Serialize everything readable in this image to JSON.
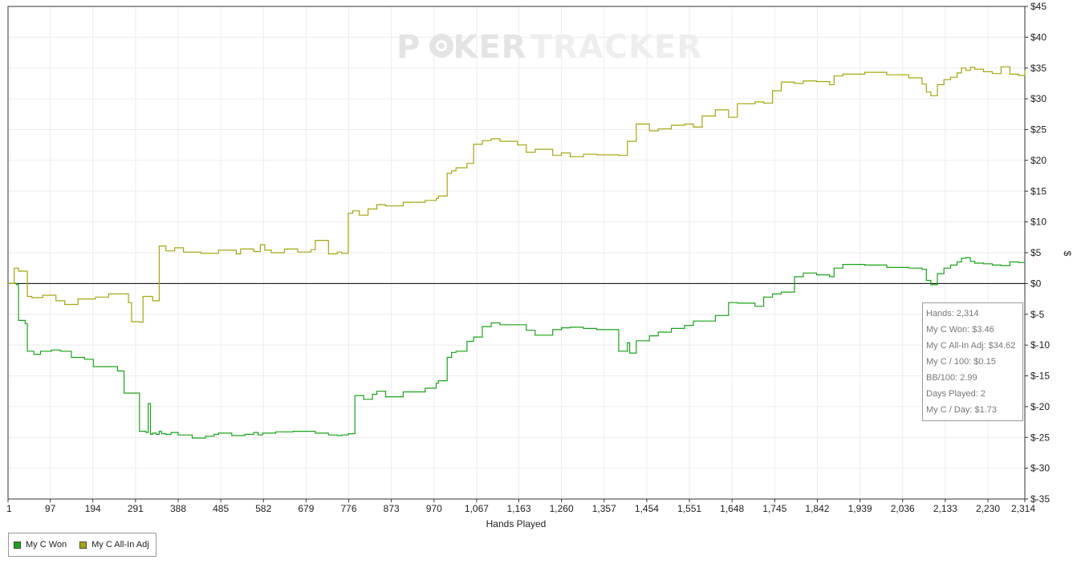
{
  "watermark": {
    "part1": "P",
    "part2": "KER",
    "part3": "TRACKER"
  },
  "chart_data": {
    "type": "line",
    "xlabel": "Hands Played",
    "ylabel": "$",
    "xlim": [
      1,
      2314
    ],
    "ylim": [
      -35,
      45
    ],
    "x_ticks": [
      1,
      97,
      194,
      291,
      388,
      485,
      582,
      679,
      776,
      873,
      970,
      1067,
      1163,
      1260,
      1357,
      1454,
      1551,
      1648,
      1745,
      1842,
      1939,
      2036,
      2133,
      2230,
      2314
    ],
    "x_tick_labels": [
      "1",
      "97",
      "194",
      "291",
      "388",
      "485",
      "582",
      "679",
      "776",
      "873",
      "970",
      "1,067",
      "1,163",
      "1,260",
      "1,357",
      "1,454",
      "1,551",
      "1,648",
      "1,745",
      "1,842",
      "1,939",
      "2,036",
      "2,133",
      "2,230",
      "2,314"
    ],
    "y_ticks": [
      45,
      40,
      35,
      30,
      25,
      20,
      15,
      10,
      5,
      0,
      -5,
      -10,
      -15,
      -20,
      -25,
      -30,
      -35
    ],
    "y_tick_labels": [
      "$45",
      "$40",
      "$35",
      "$30",
      "$25",
      "$20",
      "$15",
      "$10",
      "$5",
      "$0",
      "$-5",
      "$-10",
      "$-15",
      "$-20",
      "$-25",
      "$-30",
      "$-35"
    ],
    "grid": true,
    "legend_position": "bottom-left",
    "series": [
      {
        "name": "My C Won",
        "color": "#1aa31a",
        "x": [
          1,
          20,
          25,
          40,
          45,
          60,
          75,
          100,
          120,
          145,
          175,
          195,
          250,
          265,
          300,
          315,
          320,
          325,
          330,
          338,
          345,
          350,
          360,
          372,
          388,
          420,
          450,
          470,
          480,
          510,
          540,
          560,
          570,
          580,
          610,
          650,
          700,
          730,
          750,
          760,
          775,
          790,
          810,
          830,
          840,
          860,
          900,
          950,
          975,
          980,
          1000,
          1010,
          1020,
          1045,
          1060,
          1080,
          1100,
          1120,
          1160,
          1180,
          1200,
          1240,
          1260,
          1280,
          1310,
          1340,
          1390,
          1410,
          1415,
          1430,
          1460,
          1480,
          1510,
          1540,
          1560,
          1580,
          1610,
          1640,
          1660,
          1700,
          1720,
          1740,
          1760,
          1790,
          1810,
          1840,
          1870,
          1880,
          1900,
          1950,
          2000,
          2050,
          2080,
          2090,
          2100,
          2115,
          2130,
          2145,
          2160,
          2170,
          2180,
          2190,
          2200,
          2220,
          2240,
          2260,
          2280,
          2300,
          2314
        ],
        "y": [
          0,
          -0.2,
          -6,
          -6.5,
          -11,
          -11.5,
          -11,
          -10.8,
          -11,
          -12,
          -12.3,
          -13.5,
          -14.2,
          -17.8,
          -24,
          -24.2,
          -19.5,
          -24.5,
          -24.3,
          -24.5,
          -24,
          -24.4,
          -24.5,
          -24.2,
          -24.6,
          -25.1,
          -24.8,
          -24.5,
          -24.3,
          -24.7,
          -24.5,
          -24.2,
          -24.6,
          -24.3,
          -24.1,
          -24,
          -24.3,
          -24.6,
          -24.7,
          -24.6,
          -24.4,
          -18.2,
          -18.8,
          -18,
          -17.5,
          -18.4,
          -17.6,
          -17,
          -16.2,
          -15.8,
          -12,
          -11.2,
          -11,
          -9.4,
          -8.7,
          -7,
          -6.4,
          -6.7,
          -6.7,
          -7.6,
          -8.4,
          -7.5,
          -7.2,
          -7.1,
          -7.3,
          -7.5,
          -11,
          -9.6,
          -11.3,
          -9.3,
          -8.5,
          -7.9,
          -7.3,
          -6.8,
          -6.1,
          -6.1,
          -5.2,
          -3.1,
          -3.2,
          -3.7,
          -2.2,
          -1.7,
          -1.4,
          1.1,
          1.7,
          1.4,
          1.1,
          2.5,
          3.1,
          3,
          2.6,
          2.5,
          2.3,
          0.5,
          -0.2,
          1.6,
          2.5,
          3,
          3.5,
          4.1,
          4.2,
          3.6,
          3.3,
          3.2,
          3,
          2.9,
          3.5,
          3.4,
          3.46
        ]
      },
      {
        "name": "My C All-In Adj",
        "color": "#a6a612",
        "x": [
          1,
          15,
          25,
          45,
          55,
          80,
          110,
          130,
          160,
          200,
          230,
          275,
          282,
          300,
          308,
          330,
          345,
          360,
          380,
          400,
          440,
          480,
          520,
          530,
          560,
          575,
          585,
          600,
          630,
          660,
          690,
          700,
          730,
          750,
          760,
          775,
          785,
          800,
          820,
          840,
          860,
          900,
          950,
          975,
          980,
          1000,
          1010,
          1020,
          1045,
          1060,
          1080,
          1100,
          1120,
          1160,
          1180,
          1200,
          1240,
          1260,
          1280,
          1310,
          1340,
          1390,
          1410,
          1430,
          1460,
          1480,
          1510,
          1540,
          1560,
          1580,
          1610,
          1640,
          1660,
          1700,
          1720,
          1740,
          1760,
          1790,
          1810,
          1840,
          1870,
          1880,
          1900,
          1950,
          2000,
          2050,
          2080,
          2090,
          2100,
          2115,
          2130,
          2145,
          2160,
          2170,
          2180,
          2190,
          2200,
          2220,
          2240,
          2260,
          2280,
          2300,
          2314
        ],
        "y": [
          0,
          2.5,
          2,
          -2.1,
          -2.3,
          -1.9,
          -2.8,
          -3.4,
          -2.5,
          -2.2,
          -1.7,
          -3.1,
          -6.2,
          -6.3,
          -2.1,
          -2.8,
          6.1,
          5.3,
          5.8,
          5.1,
          4.9,
          5.4,
          4.8,
          5.6,
          5.2,
          6.3,
          5.4,
          5,
          5.6,
          5.1,
          5.5,
          7,
          4.8,
          5.1,
          4.9,
          11.4,
          11.8,
          11.1,
          12.1,
          12.8,
          12.6,
          13.2,
          13.5,
          13.8,
          14.2,
          17.9,
          18.3,
          18.8,
          19.5,
          22.6,
          23.2,
          23.5,
          23.1,
          22.5,
          21.3,
          21.8,
          20.8,
          21.2,
          20.6,
          21,
          20.9,
          20.8,
          23.1,
          25.9,
          24.8,
          25.1,
          25.7,
          25.9,
          25.4,
          27.2,
          28.2,
          27,
          29.2,
          29.5,
          29.3,
          31.3,
          32.7,
          32.5,
          32.9,
          32.8,
          32.3,
          33.7,
          34,
          34.3,
          33.9,
          33.4,
          32.4,
          31.1,
          30.5,
          32.3,
          33.1,
          33.5,
          34.2,
          35,
          34.6,
          35.1,
          34.8,
          34.4,
          34.1,
          35.2,
          34,
          33.8,
          34.62
        ]
      }
    ],
    "zero_line": true
  },
  "tooltip": {
    "lines": [
      "Hands: 2,314",
      "My C Won: $3.46",
      "My C All-In Adj: $34.62",
      "My C / 100: $0.15",
      "BB/100: 2.99",
      "Days Played: 2",
      "My C / Day: $1.73"
    ]
  },
  "legend": {
    "items": [
      {
        "label": "My C Won",
        "color": "#1aa31a"
      },
      {
        "label": "My C All-In Adj",
        "color": "#a6a612"
      }
    ]
  }
}
